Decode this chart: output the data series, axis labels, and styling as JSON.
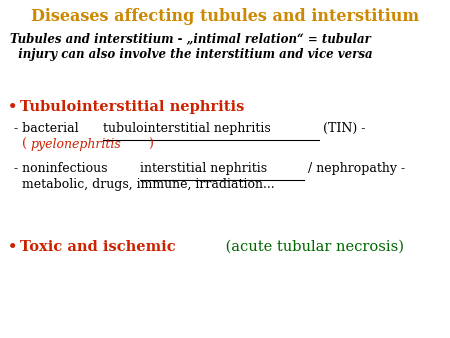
{
  "title": "Diseases affecting tubules and interstitium",
  "title_color": "#CC8800",
  "title_fontsize": 11.5,
  "background_color": "#ffffff",
  "subtitle_line1": "Tubules and interstitium - „intimal relation“ = tubular",
  "subtitle_line2": "  injury can also involve the interstitium and vice versa",
  "subtitle_color": "#000000",
  "subtitle_fontsize": 8.5,
  "bullet_color": "#CC2200",
  "bullet1_text": "Tubulointerstitial nephritis",
  "bullet1_color": "#CC2200",
  "bullet1_fontsize": 10.5,
  "item1_line1_parts": [
    {
      "text": "- bacterial ",
      "color": "#000000",
      "underline": false,
      "bold": false,
      "italic": false
    },
    {
      "text": "tubulointerstitial nephritis",
      "color": "#000000",
      "underline": true,
      "bold": false,
      "italic": false
    },
    {
      "text": " (TIN) -",
      "color": "#000000",
      "underline": false,
      "bold": false,
      "italic": false
    }
  ],
  "item1_line2_parts": [
    {
      "text": "  (",
      "color": "#CC2200",
      "underline": false,
      "bold": false,
      "italic": false
    },
    {
      "text": "pyelonephritis",
      "color": "#CC2200",
      "underline": false,
      "bold": false,
      "italic": true
    },
    {
      "text": ")",
      "color": "#CC2200",
      "underline": false,
      "bold": false,
      "italic": false
    }
  ],
  "item2_line1_parts": [
    {
      "text": "- noninfectious ",
      "color": "#000000",
      "underline": false,
      "bold": false,
      "italic": false
    },
    {
      "text": "interstitial nephritis",
      "color": "#000000",
      "underline": true,
      "bold": false,
      "italic": false
    },
    {
      "text": " / nephropathy -",
      "color": "#000000",
      "underline": false,
      "bold": false,
      "italic": false
    }
  ],
  "item2_line2": "  metabolic, drugs, immune, irradiation...",
  "item2_line2_color": "#000000",
  "item_fontsize": 9.0,
  "bullet2_text_bold": "Toxic and ischemic",
  "bullet2_text_bold_color": "#CC2200",
  "bullet2_text_normal": " (acute tubular necrosis)",
  "bullet2_text_normal_color": "#006600",
  "bullet2_fontsize": 10.5
}
